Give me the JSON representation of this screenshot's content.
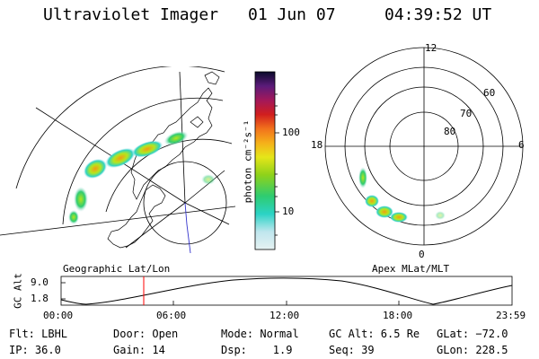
{
  "header": {
    "title": "Ultraviolet Imager",
    "date": "01 Jun 07",
    "time": "04:39:52 UT"
  },
  "colorbar": {
    "unit_label": "photon cm⁻²s⁻¹",
    "ticks": [
      "100",
      "10"
    ]
  },
  "geo_panel": {
    "caption": "Geographic Lat/Lon"
  },
  "polar_panel": {
    "caption": "Apex MLat/MLT",
    "mlt_labels": [
      "12",
      "18",
      "6",
      "0"
    ],
    "lat_labels": [
      "60",
      "70",
      "80"
    ]
  },
  "altitude_plot": {
    "ylabel": "GC Alt",
    "yticks": [
      "9.0",
      "1.8"
    ],
    "xticks": [
      "00:00",
      "06:00",
      "12:00",
      "18:00",
      "23:59"
    ],
    "current_time_marker": "04:39:52"
  },
  "info": {
    "row1": {
      "flt": "Flt: LBHL",
      "door": "Door: Open",
      "mode": "Mode: Normal",
      "gcalt": "GC Alt: 6.5 Re",
      "glat": "GLat: −72.0"
    },
    "row2": {
      "ip": "IP: 36.0",
      "gain": "Gain: 14",
      "dsp": "Dsp:    1.9",
      "seq": "Seq: 39",
      "glon": "GLon: 228.5"
    }
  },
  "colors": {
    "aurora_high": "#f39c12",
    "aurora_mid": "#b5e61d",
    "aurora_low": "#2bd3c5",
    "marker": "#ff0000",
    "meridian": "#3333cc"
  }
}
